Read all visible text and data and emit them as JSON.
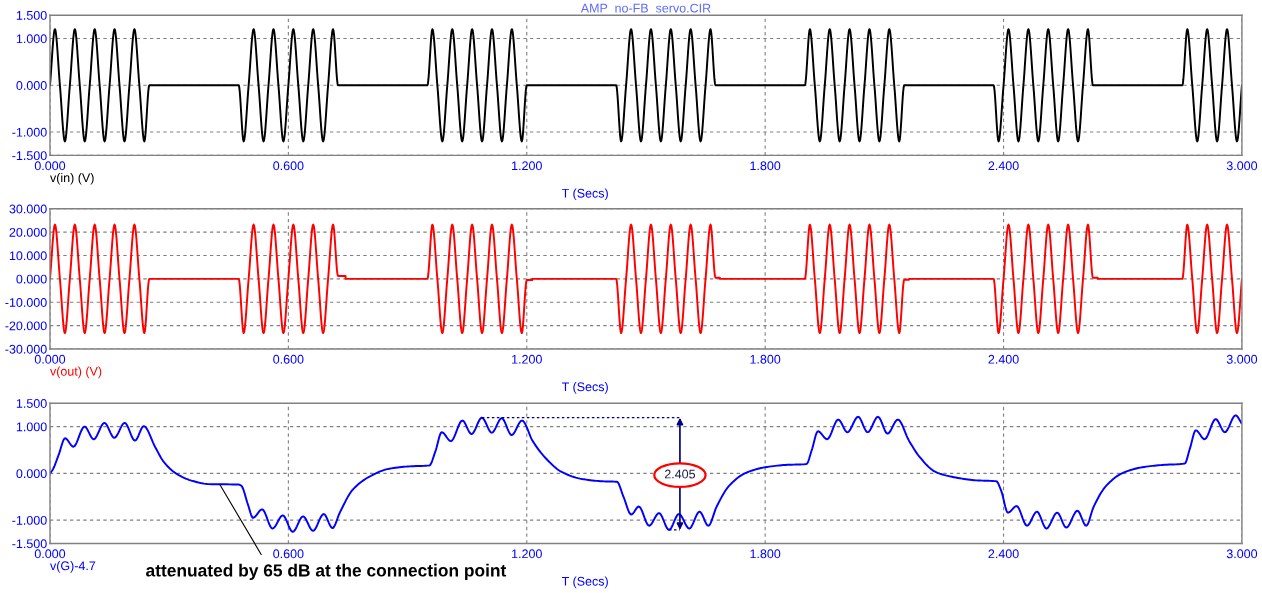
{
  "chart_data": [
    {
      "type": "line",
      "title": "AMP  no-FB  servo.CIR",
      "xlabel": "T (Secs)",
      "xlim": [
        0,
        3
      ],
      "ylim": [
        -1.5,
        1.5
      ],
      "grid": true,
      "line_style": "solid",
      "xticks": [
        {
          "value": 0,
          "label": "0.000"
        },
        {
          "value": 0.6,
          "label": "0.600"
        },
        {
          "value": 1.2,
          "label": "1.200"
        },
        {
          "value": 1.8,
          "label": "1.800"
        },
        {
          "value": 2.4,
          "label": "2.400"
        },
        {
          "value": 3,
          "label": "3.000"
        }
      ],
      "yticks": [
        {
          "value": -1.5,
          "label": "-1.500"
        },
        {
          "value": -1,
          "label": "-1.000"
        },
        {
          "value": 0,
          "label": "0.000"
        },
        {
          "value": 1,
          "label": "1.000"
        },
        {
          "value": 1.5,
          "label": "1.500"
        }
      ],
      "series": [
        {
          "name": "v(in) (V)",
          "color": "#000000",
          "x": [
            0,
            0.0125,
            0.025,
            0.0375,
            0.05,
            0.0625,
            0.075,
            0.0875,
            0.1,
            0.1125,
            0.125,
            0.1375,
            0.15,
            0.1625,
            0.175,
            0.1875,
            0.2,
            0.2125,
            0.225,
            0.2375,
            0.25,
            0.475,
            0.4875,
            0.5,
            0.5125,
            0.525,
            0.5375,
            0.55,
            0.5625,
            0.575,
            0.5875,
            0.6,
            0.6125,
            0.625,
            0.6375,
            0.65,
            0.6625,
            0.675,
            0.6875,
            0.7,
            0.7125,
            0.725,
            0.95,
            0.9625,
            0.975,
            0.9875,
            1,
            1.0125,
            1.025,
            1.0375,
            1.05,
            1.0625,
            1.075,
            1.0875,
            1.1,
            1.1125,
            1.125,
            1.1375,
            1.15,
            1.1625,
            1.175,
            1.1875,
            1.2,
            1.425,
            1.4375,
            1.45,
            1.4625,
            1.475,
            1.4875,
            1.5,
            1.5125,
            1.525,
            1.5375,
            1.55,
            1.5625,
            1.575,
            1.5875,
            1.6,
            1.6125,
            1.625,
            1.6375,
            1.65,
            1.6625,
            1.675,
            1.9,
            1.9125,
            1.925,
            1.9375,
            1.95,
            1.9625,
            1.975,
            1.9875,
            2,
            2.0125,
            2.025,
            2.0375,
            2.05,
            2.0625,
            2.075,
            2.0875,
            2.1,
            2.1125,
            2.125,
            2.1375,
            2.15,
            2.375,
            2.3875,
            2.4,
            2.4125,
            2.425,
            2.4375,
            2.45,
            2.4625,
            2.475,
            2.4875,
            2.5,
            2.5125,
            2.525,
            2.5375,
            2.55,
            2.5625,
            2.575,
            2.5875,
            2.6,
            2.6125,
            2.625,
            2.85,
            2.8625,
            2.875,
            2.8875,
            2.9,
            2.9125,
            2.925,
            2.9375,
            2.95,
            2.9625,
            2.975,
            2.9875,
            3
          ],
          "values": [
            0,
            1.2,
            0,
            -1.2,
            0,
            1.2,
            0,
            -1.2,
            0,
            1.2,
            0,
            -1.2,
            0,
            1.2,
            0,
            -1.2,
            0,
            1.2,
            0,
            -1.2,
            0,
            0,
            -1.2,
            0,
            1.2,
            0,
            -1.2,
            0,
            1.2,
            0,
            -1.2,
            0,
            1.2,
            0,
            -1.2,
            0,
            1.2,
            0,
            -1.2,
            0,
            1.2,
            0,
            0,
            1.2,
            0,
            -1.2,
            0,
            1.2,
            0,
            -1.2,
            0,
            1.2,
            0,
            -1.2,
            0,
            1.2,
            0,
            -1.2,
            0,
            1.2,
            0,
            -1.2,
            0,
            0,
            -1.2,
            0,
            1.2,
            0,
            -1.2,
            0,
            1.2,
            0,
            -1.2,
            0,
            1.2,
            0,
            -1.2,
            0,
            1.2,
            0,
            -1.2,
            0,
            1.2,
            0,
            0,
            1.2,
            0,
            -1.2,
            0,
            1.2,
            0,
            -1.2,
            0,
            1.2,
            0,
            -1.2,
            0,
            1.2,
            0,
            -1.2,
            0,
            1.2,
            0,
            -1.2,
            0,
            0,
            -1.2,
            0,
            1.2,
            0,
            -1.2,
            0,
            1.2,
            0,
            -1.2,
            0,
            1.2,
            0,
            -1.2,
            0,
            1.2,
            0,
            -1.2,
            0,
            1.2,
            0,
            0,
            1.2,
            0,
            -1.2,
            0,
            1.2,
            0,
            -1.2,
            0,
            1.2,
            0,
            -1.2,
            0
          ]
        }
      ]
    },
    {
      "type": "line",
      "xlabel": "T (Secs)",
      "xlim": [
        0,
        3
      ],
      "ylim": [
        -30,
        30
      ],
      "grid": true,
      "line_style": "solid",
      "xticks": [
        {
          "value": 0,
          "label": "0.000"
        },
        {
          "value": 0.6,
          "label": "0.600"
        },
        {
          "value": 1.2,
          "label": "1.200"
        },
        {
          "value": 1.8,
          "label": "1.800"
        },
        {
          "value": 2.4,
          "label": "2.400"
        },
        {
          "value": 3,
          "label": "3.000"
        }
      ],
      "yticks": [
        {
          "value": -30,
          "label": "-30.000"
        },
        {
          "value": -20,
          "label": "-20.000"
        },
        {
          "value": -10,
          "label": "-10.000"
        },
        {
          "value": 0,
          "label": "0.000"
        },
        {
          "value": 10,
          "label": "10.000"
        },
        {
          "value": 20,
          "label": "20.000"
        },
        {
          "value": 30,
          "label": "30.000"
        }
      ],
      "series": [
        {
          "name": "v(out) (V)",
          "color": "#ff0000",
          "x": [
            0,
            0.0125,
            0.025,
            0.0375,
            0.05,
            0.0625,
            0.075,
            0.0875,
            0.1,
            0.1125,
            0.125,
            0.1375,
            0.15,
            0.1625,
            0.175,
            0.1875,
            0.2,
            0.2125,
            0.225,
            0.2375,
            0.25,
            0.475,
            0.4875,
            0.5,
            0.5125,
            0.525,
            0.5375,
            0.55,
            0.5625,
            0.575,
            0.5875,
            0.6,
            0.6125,
            0.625,
            0.6375,
            0.65,
            0.6625,
            0.675,
            0.6875,
            0.7,
            0.7125,
            0.725,
            0.744,
            0.744,
            0.95,
            0.9625,
            0.975,
            0.9875,
            1,
            1.0125,
            1.025,
            1.0375,
            1.05,
            1.0625,
            1.075,
            1.0875,
            1.1,
            1.1125,
            1.125,
            1.1375,
            1.15,
            1.1625,
            1.175,
            1.1875,
            1.2,
            1.214,
            1.214,
            1.425,
            1.4375,
            1.45,
            1.4625,
            1.475,
            1.4875,
            1.5,
            1.5125,
            1.525,
            1.5375,
            1.55,
            1.5625,
            1.575,
            1.5875,
            1.6,
            1.6125,
            1.625,
            1.6375,
            1.65,
            1.6625,
            1.675,
            1.686,
            1.686,
            1.9,
            1.9125,
            1.925,
            1.9375,
            1.95,
            1.9625,
            1.975,
            1.9875,
            2,
            2.0125,
            2.025,
            2.0375,
            2.05,
            2.0625,
            2.075,
            2.0875,
            2.1,
            2.1125,
            2.125,
            2.1375,
            2.15,
            2.162,
            2.162,
            2.375,
            2.3875,
            2.4,
            2.4125,
            2.425,
            2.4375,
            2.45,
            2.4625,
            2.475,
            2.4875,
            2.5,
            2.5125,
            2.525,
            2.5375,
            2.55,
            2.5625,
            2.575,
            2.5875,
            2.6,
            2.6125,
            2.625,
            2.637,
            2.637,
            2.85,
            2.8625,
            2.875,
            2.8875,
            2.9,
            2.9125,
            2.925,
            2.9375,
            2.95,
            2.9625,
            2.975,
            2.9875,
            3
          ],
          "values": [
            0,
            23.2,
            0,
            -23.2,
            0,
            23.2,
            0,
            -23.2,
            0,
            23.2,
            0,
            -23.2,
            0,
            23.2,
            0,
            -23.2,
            0,
            23.2,
            0,
            -23.2,
            0,
            0,
            -23.2,
            0,
            23.2,
            0,
            -23.2,
            0,
            23.2,
            0,
            -23.2,
            0,
            23.2,
            0,
            -23.2,
            0,
            23.2,
            0,
            -23.2,
            0,
            23.2,
            1.2,
            1.2,
            0,
            0,
            23.2,
            0,
            -23.2,
            0,
            23.2,
            0,
            -23.2,
            0,
            23.2,
            0,
            -23.2,
            0,
            23.2,
            0,
            -23.2,
            0,
            23.2,
            0,
            -23.2,
            -0.5,
            -0.5,
            0,
            0,
            -23.2,
            0,
            23.2,
            0,
            -23.2,
            0,
            23.2,
            0,
            -23.2,
            0,
            23.2,
            0,
            -23.2,
            0,
            23.2,
            0,
            -23.2,
            0,
            23.2,
            0.5,
            0.5,
            0,
            0,
            23.2,
            0,
            -23.2,
            0,
            23.2,
            0,
            -23.2,
            0,
            23.2,
            0,
            -23.2,
            0,
            23.2,
            0,
            -23.2,
            0,
            23.2,
            0,
            -23.2,
            -0.4,
            -0.4,
            0,
            0,
            -23.2,
            0,
            23.2,
            0,
            -23.2,
            0,
            23.2,
            0,
            -23.2,
            0,
            23.2,
            0,
            -23.2,
            0,
            23.2,
            0,
            -23.2,
            0,
            23.2,
            0.5,
            0.5,
            0,
            0,
            23.2,
            0,
            -23.2,
            0,
            23.2,
            0,
            -23.2,
            0,
            23.2,
            0,
            -23.2,
            0
          ]
        }
      ]
    },
    {
      "type": "line",
      "xlabel": "T (Secs)",
      "xlim": [
        0,
        3
      ],
      "ylim": [
        -1.5,
        1.5
      ],
      "grid": true,
      "line_style": "solid",
      "xticks": [
        {
          "value": 0,
          "label": "0.000"
        },
        {
          "value": 0.6,
          "label": "0.600"
        },
        {
          "value": 1.2,
          "label": "1.200"
        },
        {
          "value": 1.8,
          "label": "1.800"
        },
        {
          "value": 2.4,
          "label": "2.400"
        },
        {
          "value": 3,
          "label": "3.000"
        }
      ],
      "yticks": [
        {
          "value": -1.5,
          "label": "-1.500"
        },
        {
          "value": -1,
          "label": "-1.000"
        },
        {
          "value": 0,
          "label": "0.000"
        },
        {
          "value": 1,
          "label": "1.000"
        },
        {
          "value": 1.5,
          "label": "1.500"
        }
      ],
      "annotations": [
        "2.405",
        {
          "text": "attenuated by 65 dB at the connection point",
          "x": 0.4275,
          "y": -0.24
        }
      ],
      "series": [
        {
          "name": "v(G)-4.7",
          "color": "#0000ff",
          "x": [
            0,
            0.007,
            0.022,
            0.038,
            0.059,
            0.087,
            0.11,
            0.137,
            0.162,
            0.188,
            0.214,
            0.236,
            0.265,
            0.286,
            0.317,
            0.358,
            0.4,
            0.475,
            0.482,
            0.498,
            0.511,
            0.534,
            0.56,
            0.586,
            0.611,
            0.637,
            0.662,
            0.689,
            0.711,
            0.73,
            0.761,
            0.802,
            0.854,
            0.906,
            0.955,
            0.97,
            0.986,
            1.009,
            1.038,
            1.061,
            1.087,
            1.112,
            1.137,
            1.162,
            1.188,
            1.215,
            1.246,
            1.288,
            1.339,
            1.391,
            1.427,
            1.443,
            1.463,
            1.482,
            1.508,
            1.533,
            1.558,
            1.583,
            1.609,
            1.635,
            1.657,
            1.678,
            1.708,
            1.749,
            1.8,
            1.851,
            1.904,
            1.917,
            1.933,
            1.956,
            1.984,
            2.007,
            2.034,
            2.058,
            2.084,
            2.108,
            2.134,
            2.162,
            2.188,
            2.229,
            2.28,
            2.331,
            2.382,
            2.394,
            2.411,
            2.433,
            2.459,
            2.484,
            2.508,
            2.535,
            2.558,
            2.586,
            2.608,
            2.627,
            2.657,
            2.698,
            2.749,
            2.8,
            2.856,
            2.869,
            2.884,
            2.906,
            2.934,
            2.957,
            2.984,
            3
          ],
          "values": [
            0,
            0.08,
            0.4,
            0.75,
            0.57,
            1.0,
            0.73,
            1.08,
            0.76,
            1.08,
            0.7,
            1.01,
            0.56,
            0.25,
            0.0,
            -0.16,
            -0.23,
            -0.24,
            -0.27,
            -0.66,
            -0.95,
            -0.77,
            -1.18,
            -0.9,
            -1.25,
            -0.92,
            -1.23,
            -0.87,
            -1.17,
            -0.83,
            -0.36,
            -0.08,
            0.1,
            0.15,
            0.17,
            0.47,
            0.88,
            0.69,
            1.13,
            0.84,
            1.19,
            0.87,
            1.18,
            0.82,
            1.13,
            0.69,
            0.34,
            0.03,
            -0.12,
            -0.17,
            -0.18,
            -0.49,
            -0.88,
            -0.71,
            -1.12,
            -0.85,
            -1.21,
            -0.87,
            -1.18,
            -0.82,
            -1.12,
            -0.71,
            -0.28,
            0.0,
            0.13,
            0.18,
            0.2,
            0.49,
            0.9,
            0.73,
            1.15,
            0.88,
            1.21,
            0.88,
            1.21,
            0.85,
            1.15,
            0.7,
            0.36,
            0.03,
            -0.09,
            -0.15,
            -0.17,
            -0.37,
            -0.84,
            -0.7,
            -1.12,
            -0.82,
            -1.18,
            -0.84,
            -1.16,
            -0.8,
            -1.12,
            -0.71,
            -0.28,
            0.0,
            0.13,
            0.18,
            0.21,
            0.53,
            0.92,
            0.73,
            1.16,
            0.88,
            1.24,
            1.06
          ]
        }
      ]
    }
  ]
}
